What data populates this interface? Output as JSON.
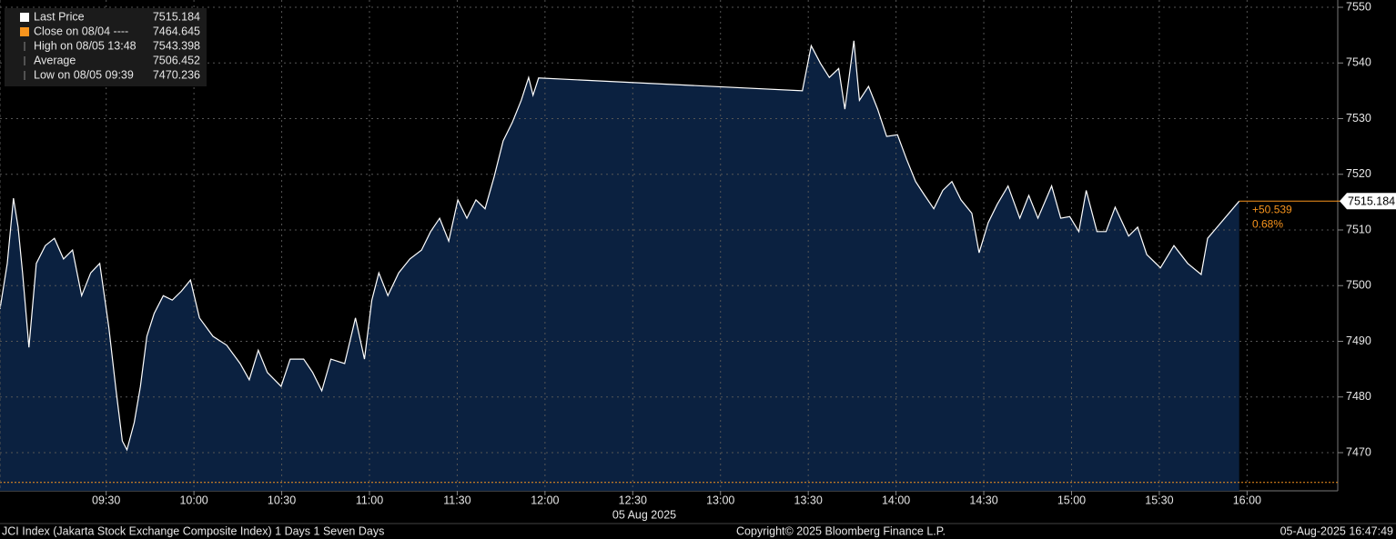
{
  "chart_data": {
    "type": "area",
    "series": [
      {
        "name": "Last Price",
        "color": "#ffffff",
        "fill": "#0b2140",
        "x": [
          533.7,
          536.2,
          538.3,
          539.9,
          541.4,
          543.6,
          546.1,
          549.2,
          552.3,
          555.4,
          558.5,
          561.6,
          564.7,
          567.8,
          570.9,
          573.4,
          575.5,
          577.1,
          579.6,
          581.7,
          583.9,
          586.4,
          589.5,
          592.6,
          595.7,
          598.8,
          601.9,
          606.5,
          611.2,
          615.8,
          618.9,
          622.0,
          625.1,
          629.8,
          632.9,
          637.5,
          640.6,
          643.7,
          646.8,
          651.5,
          655.2,
          658.3,
          660.8,
          663.2,
          666.3,
          670.0,
          673.8,
          677.8,
          680.9,
          684.0,
          687.1,
          690.2,
          693.3,
          696.4,
          699.5,
          702.6,
          705.7,
          708.8,
          711.9,
          714.4,
          715.9,
          717.8,
          808.0,
          811.0,
          814.2,
          817.2,
          820.4,
          822.5,
          825.6,
          827.5,
          830.6,
          833.7,
          836.8,
          840.5,
          843.6,
          846.7,
          849.8,
          852.9,
          856.0,
          859.1,
          862.2,
          865.9,
          868.4,
          871.5,
          874.6,
          878.3,
          882.3,
          885.4,
          888.5,
          893.2,
          896.3,
          899.4,
          902.5,
          905.0,
          908.7,
          911.8,
          914.9,
          919.5,
          922.6,
          925.7,
          930.4,
          935.0,
          939.7,
          944.3,
          946.5,
          957.3
        ],
        "values": [
          7495.8,
          7504.0,
          7515.7,
          7510.5,
          7502.3,
          7488.9,
          7504.0,
          7507.2,
          7508.5,
          7504.8,
          7506.4,
          7498.2,
          7502.3,
          7504.0,
          7492.5,
          7481.1,
          7472.1,
          7470.5,
          7475.4,
          7481.9,
          7490.9,
          7495.0,
          7498.2,
          7497.4,
          7499.0,
          7501.0,
          7494.2,
          7490.9,
          7489.3,
          7486.0,
          7483.1,
          7488.4,
          7484.4,
          7481.9,
          7486.8,
          7486.8,
          7484.4,
          7481.1,
          7486.8,
          7486.0,
          7494.2,
          7486.8,
          7497.4,
          7502.3,
          7498.2,
          7502.3,
          7504.8,
          7506.4,
          7509.7,
          7512.1,
          7508.0,
          7515.4,
          7512.1,
          7515.4,
          7513.8,
          7519.5,
          7526.0,
          7529.3,
          7533.3,
          7537.4,
          7534.2,
          7537.3,
          7535.0,
          7543.1,
          7539.9,
          7537.4,
          7539.0,
          7531.7,
          7544.0,
          7533.3,
          7535.8,
          7531.7,
          7526.8,
          7527.1,
          7522.7,
          7518.7,
          7516.2,
          7513.8,
          7517.1,
          7518.7,
          7515.4,
          7513.0,
          7505.9,
          7511.3,
          7514.6,
          7517.9,
          7512.1,
          7516.2,
          7512.1,
          7517.9,
          7512.1,
          7512.4,
          7509.7,
          7517.1,
          7509.7,
          7509.7,
          7514.1,
          7508.9,
          7510.5,
          7505.6,
          7503.2,
          7507.2,
          7504.0,
          7502.0,
          7508.5,
          7515.184
        ]
      }
    ],
    "legend": [
      {
        "label": "Last Price",
        "value": 7515.184,
        "color": "#ffffff"
      },
      {
        "label": "Close on 08/04 ----",
        "value": 7464.645,
        "color": "#f7941d"
      },
      {
        "label": "High on 08/05 13:48",
        "value": 7543.398
      },
      {
        "label": "Average",
        "value": 7506.452
      },
      {
        "label": "Low on 08/05 09:39",
        "value": 7470.236
      }
    ],
    "change": "+50.539",
    "change_pct": "0.68%",
    "xlabel": "05 Aug 2025",
    "xlim": [
      533.7,
      991.0
    ],
    "xticks": [
      {
        "value": 570,
        "label": "09:30"
      },
      {
        "value": 600,
        "label": "10:00"
      },
      {
        "value": 630,
        "label": "10:30"
      },
      {
        "value": 660,
        "label": "11:00"
      },
      {
        "value": 690,
        "label": "11:30"
      },
      {
        "value": 720,
        "label": "12:00"
      },
      {
        "value": 750,
        "label": "12:30"
      },
      {
        "value": 780,
        "label": "13:00"
      },
      {
        "value": 810,
        "label": "13:30"
      },
      {
        "value": 840,
        "label": "14:00"
      },
      {
        "value": 870,
        "label": "14:30"
      },
      {
        "value": 900,
        "label": "15:00"
      },
      {
        "value": 930,
        "label": "15:30"
      },
      {
        "value": 960,
        "label": "16:00"
      }
    ],
    "ylim": [
      7463.14,
      7551.31
    ],
    "yticks": [
      7470,
      7480,
      7490,
      7500,
      7510,
      7520,
      7530,
      7540,
      7550
    ],
    "grid": true
  },
  "footer": {
    "left": "JCI Index (Jakarta Stock Exchange Composite Index) 1 Days 1 Seven Days",
    "center": "Copyright© 2025 Bloomberg Finance L.P.",
    "right": "05-Aug-2025 16:47:49"
  }
}
